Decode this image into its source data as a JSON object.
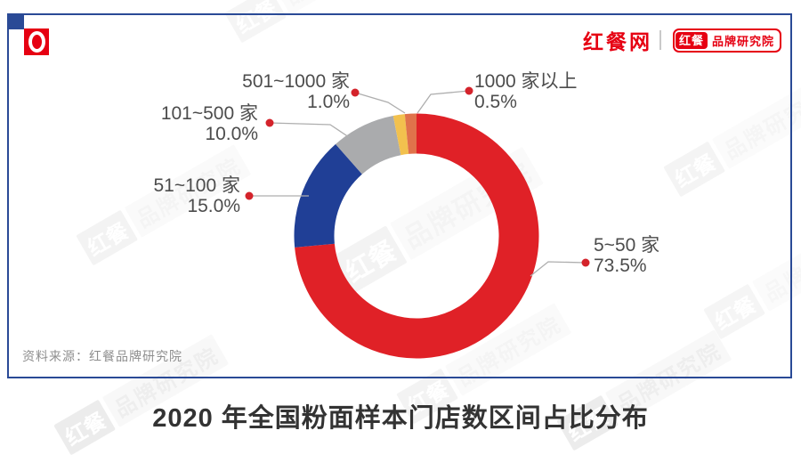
{
  "header": {
    "site_logo": "红餐网",
    "badge": {
      "left": "红餐",
      "right": "品牌研究院"
    }
  },
  "chart_data": {
    "type": "donut",
    "title": "2020 年全国粉面样本门店数区间占比分布",
    "source": "资料来源：红餐品牌研究院",
    "unit": "%",
    "legend_position": "callout-labels",
    "donut_hole_ratio": 0.67,
    "start_angle_deg": 0,
    "direction": "clockwise",
    "segments": [
      {
        "label": "5~50 家",
        "value": 73.5,
        "pct_label": "73.5%",
        "color": "#e02127"
      },
      {
        "label": "51~100 家",
        "value": 15.0,
        "pct_label": "15.0%",
        "color": "#203f96"
      },
      {
        "label": "101~500 家",
        "value": 10.0,
        "pct_label": "10.0%",
        "color": "#aaabad"
      },
      {
        "label": "501~1000 家",
        "value": 1.0,
        "pct_label": "1.0%",
        "color": "#f2c14e"
      },
      {
        "label": "1000 家以上",
        "value": 0.5,
        "pct_label": "0.5%",
        "color": "#e0724b"
      }
    ]
  },
  "watermark": {
    "left": "红餐",
    "right": "品牌研究院"
  },
  "colors": {
    "brand_red": "#e60012",
    "frame_blue": "#2a4a96",
    "leader_gray": "#aeaeae",
    "dot_red": "#d4232b",
    "label_text": "#4c4c4c",
    "title_text": "#333333"
  }
}
